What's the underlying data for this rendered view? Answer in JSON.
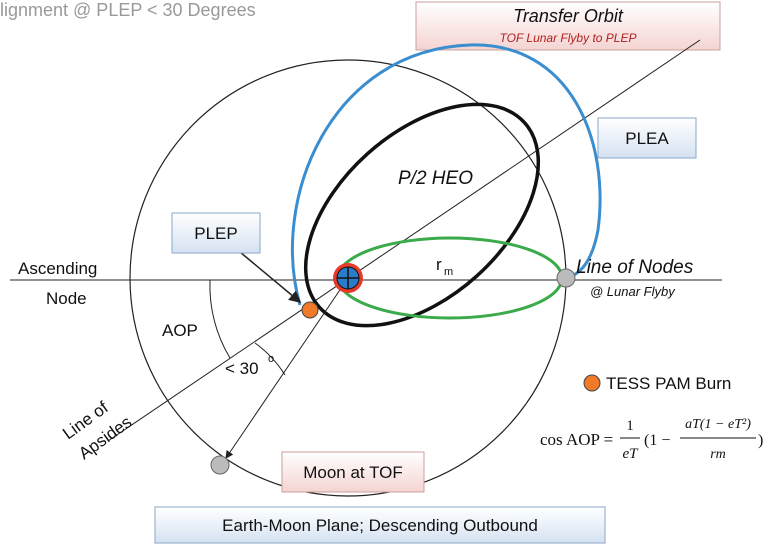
{
  "title": "lignment @ PLEP < 30 Degrees",
  "transfer_box": {
    "title": "Transfer Orbit",
    "subtitle": "TOF Lunar Flyby to PLEP"
  },
  "labels": {
    "plea": "PLEA",
    "plep": "PLEP",
    "heo": "P/2 HEO",
    "ascending": "Ascending",
    "node": "Node",
    "aop": "AOP",
    "angle": "< 30",
    "degree": "o",
    "apsides_1": "Line of",
    "apsides_2": "Apsides",
    "r": "r",
    "r_sub": "m",
    "nodes": "Line of Nodes",
    "flyby": "@ Lunar Flyby",
    "moon": "Moon at TOF",
    "burn": "TESS PAM Burn",
    "plane": "Earth-Moon Plane; Descending Outbound"
  },
  "formula": {
    "lhs": "cos AOP =",
    "num1": "1",
    "den1": "eT",
    "open": "(1 −",
    "num2": "aT(1 − eT²)",
    "den2": "rm",
    "close": ")"
  }
}
